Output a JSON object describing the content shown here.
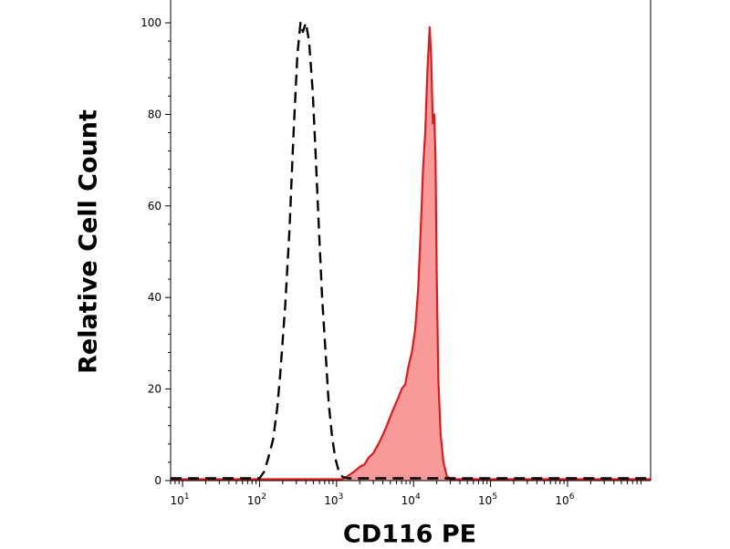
{
  "chart_data": {
    "type": "area",
    "title": "",
    "xlabel": "CD116 PE",
    "ylabel": "Relative Cell Count",
    "x_scale": "log",
    "xlim": [
      7,
      12000000
    ],
    "ylim": [
      0,
      100
    ],
    "x_ticks": [
      {
        "base": "10",
        "exp": "1",
        "value": 10
      },
      {
        "base": "10",
        "exp": "2",
        "value": 100
      },
      {
        "base": "10",
        "exp": "3",
        "value": 1000
      },
      {
        "base": "10",
        "exp": "4",
        "value": 10000
      },
      {
        "base": "10",
        "exp": "5",
        "value": 100000
      },
      {
        "base": "10",
        "exp": "6",
        "value": 1000000
      }
    ],
    "y_ticks": [
      {
        "label": "0",
        "value": 0
      },
      {
        "label": "20",
        "value": 20
      },
      {
        "label": "40",
        "value": 40
      },
      {
        "label": "60",
        "value": 60
      },
      {
        "label": "80",
        "value": 80
      },
      {
        "label": "100",
        "value": 100
      }
    ],
    "grid": false,
    "series": [
      {
        "style": "dashed",
        "color": "#000000",
        "fill": "none",
        "points": [
          [
            7,
            0.5
          ],
          [
            100,
            0.5
          ],
          [
            115,
            2
          ],
          [
            130,
            5
          ],
          [
            150,
            9
          ],
          [
            170,
            16
          ],
          [
            185,
            23
          ],
          [
            215,
            38
          ],
          [
            245,
            55
          ],
          [
            275,
            75
          ],
          [
            310,
            93
          ],
          [
            340,
            100
          ],
          [
            365,
            98
          ],
          [
            400,
            100
          ],
          [
            440,
            96
          ],
          [
            490,
            85
          ],
          [
            540,
            70
          ],
          [
            590,
            55
          ],
          [
            650,
            40
          ],
          [
            720,
            28
          ],
          [
            790,
            17
          ],
          [
            870,
            10
          ],
          [
            960,
            5
          ],
          [
            1070,
            2
          ],
          [
            1200,
            0.8
          ],
          [
            1400,
            0.5
          ],
          [
            12000000,
            0.5
          ]
        ]
      },
      {
        "style": "solid",
        "color": "#e01a1a",
        "fill": "#f99a9a",
        "points": [
          [
            7,
            0.3
          ],
          [
            1200,
            0.3
          ],
          [
            1400,
            1
          ],
          [
            1700,
            2
          ],
          [
            2000,
            3
          ],
          [
            2300,
            3.5
          ],
          [
            2600,
            5
          ],
          [
            3000,
            6
          ],
          [
            3500,
            8
          ],
          [
            4000,
            10
          ],
          [
            4500,
            12
          ],
          [
            5000,
            14
          ],
          [
            5600,
            16
          ],
          [
            6300,
            18
          ],
          [
            7000,
            20
          ],
          [
            7800,
            21
          ],
          [
            8600,
            25
          ],
          [
            9500,
            28
          ],
          [
            10500,
            33
          ],
          [
            11500,
            42
          ],
          [
            12400,
            55
          ],
          [
            13300,
            68
          ],
          [
            14200,
            76
          ],
          [
            15200,
            90
          ],
          [
            16200,
            99
          ],
          [
            17000,
            92
          ],
          [
            17800,
            78
          ],
          [
            18600,
            80
          ],
          [
            19300,
            70
          ],
          [
            20000,
            45
          ],
          [
            21000,
            22
          ],
          [
            22500,
            10
          ],
          [
            24500,
            4
          ],
          [
            27000,
            1
          ],
          [
            30000,
            0.3
          ],
          [
            12000000,
            0.3
          ]
        ]
      }
    ]
  }
}
